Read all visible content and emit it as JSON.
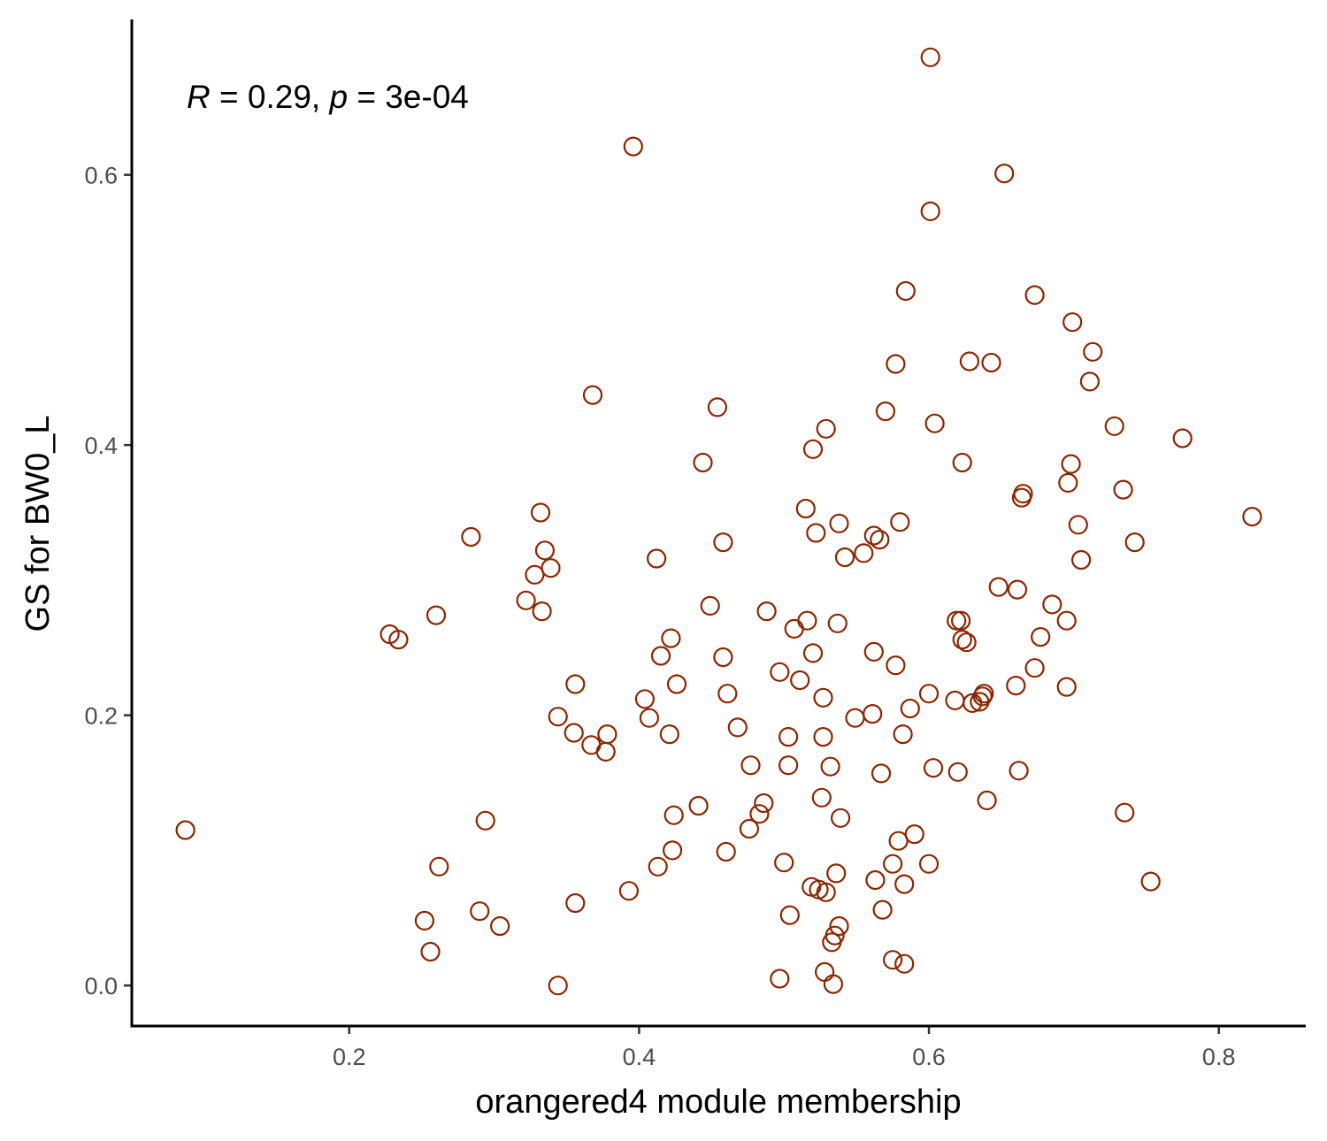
{
  "chart_data": {
    "type": "scatter",
    "title": "",
    "xlabel": "orangered4 module membership",
    "ylabel": "GS for BW0_L",
    "xlim": [
      0.05,
      0.86
    ],
    "ylim": [
      -0.03,
      0.715
    ],
    "x_ticks": [
      0.2,
      0.4,
      0.6,
      0.8
    ],
    "x_tick_labels": [
      "0.2",
      "0.4",
      "0.6",
      "0.8"
    ],
    "y_ticks": [
      0.0,
      0.2,
      0.4,
      0.6
    ],
    "y_tick_labels": [
      "0.0",
      "0.2",
      "0.4",
      "0.6"
    ],
    "grid": false,
    "legend": "none",
    "marker": "open-circle",
    "point_color": "#8B2500",
    "annotation": {
      "r_symbol": "R",
      "r_value": " = 0.29, ",
      "p_symbol": "p",
      "p_value": " = 3e-04"
    },
    "points": [
      [
        0.087,
        0.115
      ],
      [
        0.228,
        0.26
      ],
      [
        0.234,
        0.256
      ],
      [
        0.252,
        0.048
      ],
      [
        0.256,
        0.025
      ],
      [
        0.26,
        0.274
      ],
      [
        0.262,
        0.088
      ],
      [
        0.284,
        0.332
      ],
      [
        0.29,
        0.055
      ],
      [
        0.294,
        0.122
      ],
      [
        0.304,
        0.044
      ],
      [
        0.322,
        0.285
      ],
      [
        0.328,
        0.304
      ],
      [
        0.332,
        0.35
      ],
      [
        0.333,
        0.277
      ],
      [
        0.335,
        0.322
      ],
      [
        0.339,
        0.309
      ],
      [
        0.344,
        0.199
      ],
      [
        0.344,
        0.0
      ],
      [
        0.355,
        0.187
      ],
      [
        0.356,
        0.223
      ],
      [
        0.356,
        0.061
      ],
      [
        0.367,
        0.178
      ],
      [
        0.368,
        0.437
      ],
      [
        0.377,
        0.173
      ],
      [
        0.378,
        0.186
      ],
      [
        0.393,
        0.07
      ],
      [
        0.396,
        0.621
      ],
      [
        0.404,
        0.212
      ],
      [
        0.407,
        0.198
      ],
      [
        0.412,
        0.316
      ],
      [
        0.413,
        0.088
      ],
      [
        0.415,
        0.244
      ],
      [
        0.421,
        0.186
      ],
      [
        0.422,
        0.257
      ],
      [
        0.423,
        0.1
      ],
      [
        0.424,
        0.126
      ],
      [
        0.426,
        0.223
      ],
      [
        0.441,
        0.133
      ],
      [
        0.444,
        0.387
      ],
      [
        0.449,
        0.281
      ],
      [
        0.454,
        0.428
      ],
      [
        0.458,
        0.243
      ],
      [
        0.458,
        0.328
      ],
      [
        0.46,
        0.099
      ],
      [
        0.461,
        0.216
      ],
      [
        0.468,
        0.191
      ],
      [
        0.476,
        0.116
      ],
      [
        0.477,
        0.163
      ],
      [
        0.483,
        0.127
      ],
      [
        0.486,
        0.135
      ],
      [
        0.488,
        0.277
      ],
      [
        0.497,
        0.232
      ],
      [
        0.497,
        0.005
      ],
      [
        0.5,
        0.091
      ],
      [
        0.503,
        0.184
      ],
      [
        0.503,
        0.163
      ],
      [
        0.504,
        0.052
      ],
      [
        0.507,
        0.264
      ],
      [
        0.511,
        0.226
      ],
      [
        0.515,
        0.353
      ],
      [
        0.516,
        0.27
      ],
      [
        0.519,
        0.073
      ],
      [
        0.52,
        0.246
      ],
      [
        0.52,
        0.397
      ],
      [
        0.522,
        0.335
      ],
      [
        0.524,
        0.071
      ],
      [
        0.526,
        0.139
      ],
      [
        0.527,
        0.213
      ],
      [
        0.527,
        0.184
      ],
      [
        0.528,
        0.01
      ],
      [
        0.529,
        0.069
      ],
      [
        0.529,
        0.412
      ],
      [
        0.532,
        0.162
      ],
      [
        0.533,
        0.032
      ],
      [
        0.534,
        0.001
      ],
      [
        0.535,
        0.037
      ],
      [
        0.536,
        0.083
      ],
      [
        0.537,
        0.268
      ],
      [
        0.538,
        0.044
      ],
      [
        0.538,
        0.342
      ],
      [
        0.539,
        0.124
      ],
      [
        0.542,
        0.317
      ],
      [
        0.549,
        0.198
      ],
      [
        0.555,
        0.32
      ],
      [
        0.561,
        0.201
      ],
      [
        0.562,
        0.333
      ],
      [
        0.562,
        0.247
      ],
      [
        0.563,
        0.078
      ],
      [
        0.566,
        0.33
      ],
      [
        0.567,
        0.157
      ],
      [
        0.568,
        0.056
      ],
      [
        0.57,
        0.425
      ],
      [
        0.575,
        0.019
      ],
      [
        0.575,
        0.09
      ],
      [
        0.577,
        0.237
      ],
      [
        0.577,
        0.46
      ],
      [
        0.579,
        0.107
      ],
      [
        0.58,
        0.343
      ],
      [
        0.582,
        0.186
      ],
      [
        0.583,
        0.075
      ],
      [
        0.583,
        0.016
      ],
      [
        0.584,
        0.514
      ],
      [
        0.587,
        0.205
      ],
      [
        0.59,
        0.112
      ],
      [
        0.6,
        0.216
      ],
      [
        0.6,
        0.09
      ],
      [
        0.601,
        0.687
      ],
      [
        0.601,
        0.573
      ],
      [
        0.603,
        0.161
      ],
      [
        0.604,
        0.416
      ],
      [
        0.618,
        0.211
      ],
      [
        0.619,
        0.27
      ],
      [
        0.62,
        0.158
      ],
      [
        0.622,
        0.27
      ],
      [
        0.623,
        0.256
      ],
      [
        0.623,
        0.387
      ],
      [
        0.626,
        0.254
      ],
      [
        0.628,
        0.462
      ],
      [
        0.63,
        0.209
      ],
      [
        0.635,
        0.21
      ],
      [
        0.637,
        0.214
      ],
      [
        0.638,
        0.216
      ],
      [
        0.64,
        0.137
      ],
      [
        0.643,
        0.461
      ],
      [
        0.648,
        0.295
      ],
      [
        0.652,
        0.601
      ],
      [
        0.66,
        0.222
      ],
      [
        0.661,
        0.293
      ],
      [
        0.662,
        0.159
      ],
      [
        0.664,
        0.361
      ],
      [
        0.665,
        0.364
      ],
      [
        0.673,
        0.511
      ],
      [
        0.673,
        0.235
      ],
      [
        0.677,
        0.258
      ],
      [
        0.685,
        0.282
      ],
      [
        0.695,
        0.27
      ],
      [
        0.695,
        0.221
      ],
      [
        0.696,
        0.372
      ],
      [
        0.698,
        0.386
      ],
      [
        0.699,
        0.491
      ],
      [
        0.703,
        0.341
      ],
      [
        0.705,
        0.315
      ],
      [
        0.711,
        0.447
      ],
      [
        0.713,
        0.469
      ],
      [
        0.728,
        0.414
      ],
      [
        0.734,
        0.367
      ],
      [
        0.735,
        0.128
      ],
      [
        0.742,
        0.328
      ],
      [
        0.753,
        0.077
      ],
      [
        0.775,
        0.405
      ],
      [
        0.823,
        0.347
      ]
    ]
  }
}
